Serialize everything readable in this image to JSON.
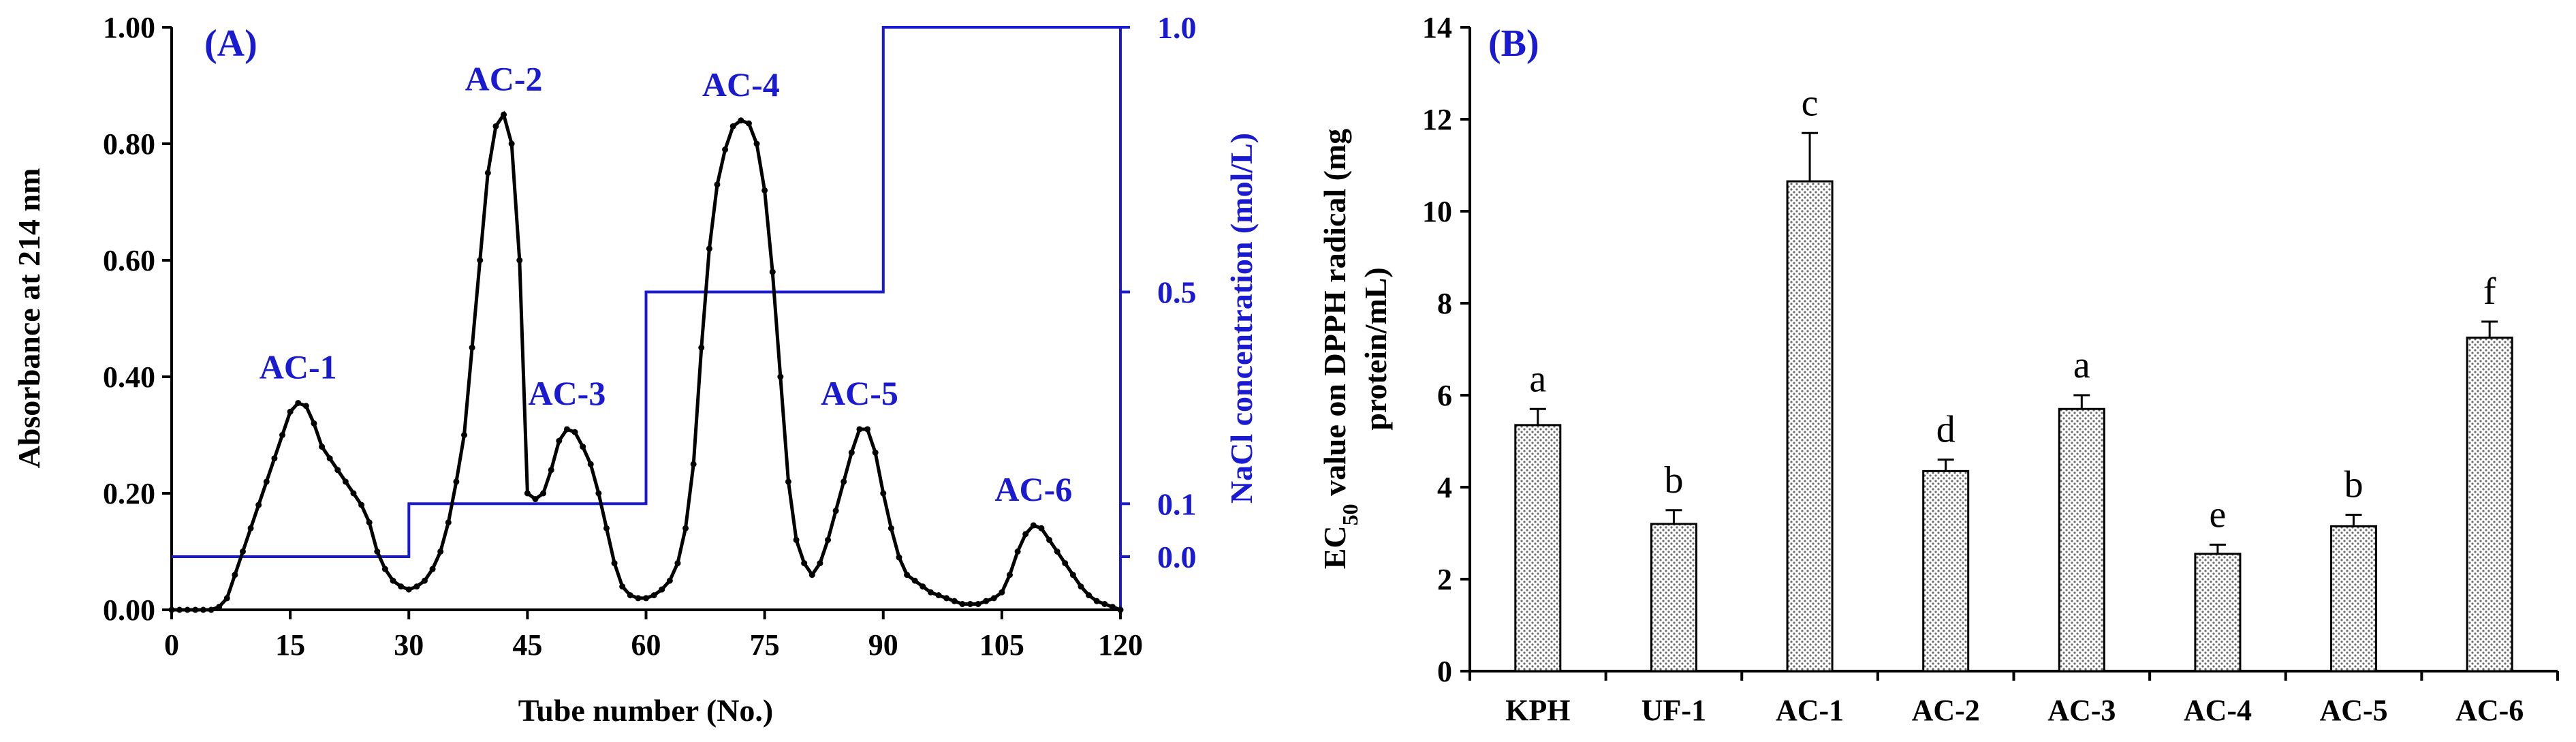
{
  "chart_data": [
    {
      "type": "line",
      "panel_label": "(A)",
      "xlabel": "Tube number (No.)",
      "ylabel": "Absorbance at 214 nm",
      "y2label": "NaCl concentration (mol/L)",
      "xlim": [
        0,
        120
      ],
      "ylim": [
        0,
        1.0
      ],
      "y2_ticks": [
        "0.0",
        "0.1",
        "0.5",
        "1.0"
      ],
      "x_ticks": [
        "0",
        "15",
        "30",
        "45",
        "60",
        "75",
        "90",
        "105",
        "120"
      ],
      "y_ticks": [
        "0.00",
        "0.20",
        "0.40",
        "0.60",
        "0.80",
        "1.00"
      ],
      "series": [
        {
          "color": "#000000",
          "x": [
            0,
            1,
            2,
            3,
            4,
            5,
            6,
            7,
            8,
            9,
            10,
            11,
            12,
            13,
            14,
            15,
            16,
            17,
            18,
            19,
            20,
            21,
            22,
            23,
            24,
            25,
            26,
            27,
            28,
            29,
            30,
            31,
            32,
            33,
            34,
            35,
            36,
            37,
            38,
            39,
            40,
            41,
            42,
            43,
            44,
            45,
            46,
            47,
            48,
            49,
            50,
            51,
            52,
            53,
            54,
            55,
            56,
            57,
            58,
            59,
            60,
            61,
            62,
            63,
            64,
            65,
            66,
            67,
            68,
            69,
            70,
            71,
            72,
            73,
            74,
            75,
            76,
            77,
            78,
            79,
            80,
            81,
            82,
            83,
            84,
            85,
            86,
            87,
            88,
            89,
            90,
            91,
            92,
            93,
            94,
            95,
            96,
            97,
            98,
            99,
            100,
            101,
            102,
            103,
            104,
            105,
            106,
            107,
            108,
            109,
            110,
            111,
            112,
            113,
            114,
            115,
            116,
            117,
            118,
            119,
            120
          ],
          "y": [
            0.0,
            0.0,
            0.0,
            0.0,
            0.0,
            0.0,
            0.005,
            0.02,
            0.06,
            0.1,
            0.14,
            0.18,
            0.22,
            0.26,
            0.3,
            0.34,
            0.355,
            0.35,
            0.32,
            0.28,
            0.26,
            0.24,
            0.22,
            0.2,
            0.18,
            0.15,
            0.1,
            0.07,
            0.05,
            0.04,
            0.035,
            0.04,
            0.05,
            0.07,
            0.1,
            0.15,
            0.22,
            0.3,
            0.45,
            0.6,
            0.75,
            0.83,
            0.85,
            0.8,
            0.6,
            0.2,
            0.19,
            0.2,
            0.24,
            0.29,
            0.31,
            0.305,
            0.28,
            0.25,
            0.2,
            0.14,
            0.08,
            0.04,
            0.025,
            0.02,
            0.02,
            0.025,
            0.035,
            0.05,
            0.08,
            0.14,
            0.25,
            0.45,
            0.62,
            0.73,
            0.79,
            0.83,
            0.84,
            0.835,
            0.8,
            0.72,
            0.58,
            0.4,
            0.22,
            0.12,
            0.08,
            0.06,
            0.08,
            0.12,
            0.17,
            0.22,
            0.27,
            0.31,
            0.31,
            0.27,
            0.2,
            0.14,
            0.09,
            0.06,
            0.05,
            0.04,
            0.03,
            0.025,
            0.02,
            0.015,
            0.01,
            0.01,
            0.01,
            0.015,
            0.02,
            0.03,
            0.06,
            0.1,
            0.13,
            0.145,
            0.14,
            0.12,
            0.1,
            0.08,
            0.06,
            0.04,
            0.025,
            0.015,
            0.01,
            0.005,
            0.0
          ]
        },
        {
          "color": "#1a1ad0",
          "axis": "right",
          "step_x": [
            0,
            30,
            30,
            60,
            60,
            90,
            90,
            120
          ],
          "step_y": [
            0.0,
            0.0,
            0.1,
            0.1,
            0.5,
            0.5,
            1.0,
            1.0
          ]
        }
      ],
      "annotations": [
        {
          "text": "AC-1",
          "x": 16,
          "y": 0.355
        },
        {
          "text": "AC-2",
          "x": 42,
          "y": 0.85
        },
        {
          "text": "AC-3",
          "x": 50,
          "y": 0.31
        },
        {
          "text": "AC-4",
          "x": 72,
          "y": 0.84
        },
        {
          "text": "AC-5",
          "x": 87,
          "y": 0.31
        },
        {
          "text": "AC-6",
          "x": 109,
          "y": 0.145
        }
      ]
    },
    {
      "type": "bar",
      "panel_label": "(B)",
      "ylabel_line1": "EC",
      "ylabel_sub": "50",
      "ylabel_line1_rest": " value on DPPH radical (mg",
      "ylabel_line2": "protein/mL)",
      "ylim": [
        0,
        14
      ],
      "y_ticks": [
        "0",
        "2",
        "4",
        "6",
        "8",
        "10",
        "12",
        "14"
      ],
      "categories": [
        "KPH",
        "UF-1",
        "AC-1",
        "AC-2",
        "AC-3",
        "AC-4",
        "AC-5",
        "AC-6"
      ],
      "values": [
        5.35,
        3.2,
        10.65,
        4.35,
        5.7,
        2.55,
        3.15,
        7.25
      ],
      "errors": [
        0.35,
        0.3,
        1.05,
        0.25,
        0.3,
        0.2,
        0.25,
        0.35
      ],
      "letters": [
        "a",
        "b",
        "c",
        "d",
        "a",
        "e",
        "b",
        "f"
      ]
    }
  ]
}
